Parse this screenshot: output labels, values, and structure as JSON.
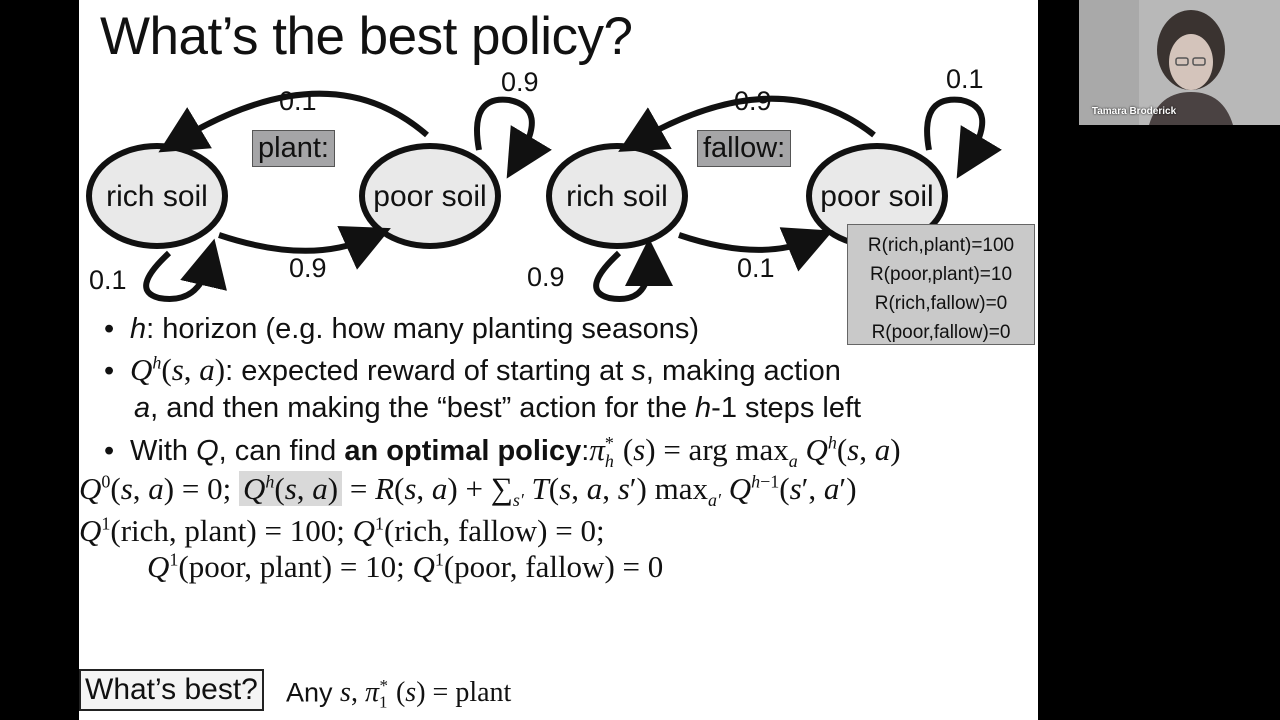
{
  "slide": {
    "title": "What’s the best policy?",
    "left_mdp": {
      "action_label": "plant:",
      "node_rich": "rich soil",
      "node_poor": "poor soil",
      "p_poor_to_rich": "0.1",
      "p_poor_self": "0.9",
      "p_rich_self": "0.1",
      "p_rich_to_poor": "0.9"
    },
    "right_mdp": {
      "action_label": "fallow:",
      "node_rich": "rich soil",
      "node_poor": "poor soil",
      "p_poor_to_rich": "0.9",
      "p_poor_self": "0.1",
      "p_rich_self": "0.9",
      "p_rich_to_poor": "0.1"
    },
    "rewards": [
      "R(rich,plant)=100",
      "R(poor,plant)=10",
      "R(rich,fallow)=0",
      "R(poor,fallow)=0"
    ],
    "bullets": {
      "horizon_var": "h",
      "horizon_text": ": horizon (e.g. how many planting seasons)",
      "q_text_1": ": expected reward of starting at ",
      "q_text_s": "s",
      "q_text_2": ", making action",
      "q_text_a": "a",
      "q_text_3": ", and then making the “best” action for the ",
      "q_text_h": "h",
      "q_text_4": "-1 steps left",
      "opt_1": "With ",
      "opt_q": "Q",
      "opt_2": ", can find ",
      "opt_bold": "an optimal policy",
      "opt_3": ":"
    },
    "whats_best": "What’s best?",
    "any_s_prefix": "Any "
  },
  "participant": {
    "name": "Tamara Broderick"
  }
}
